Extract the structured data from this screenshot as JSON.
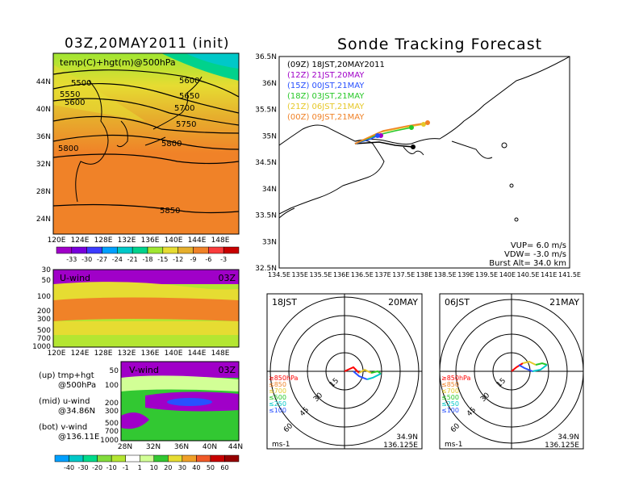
{
  "left_panel": {
    "title": "03Z,20MAY2011 (init)",
    "map_label": "temp(C)+hgt(m)@500hPa",
    "lat_labels": [
      "44N",
      "40N",
      "36N",
      "32N",
      "28N",
      "24N"
    ],
    "lon_labels": [
      "120E",
      "124E",
      "128E",
      "132E",
      "136E",
      "140E",
      "144E",
      "148E"
    ],
    "contour_labels": [
      "5500",
      "5550",
      "5600",
      "5600",
      "5650",
      "5700",
      "5750",
      "5800",
      "5800",
      "5850"
    ],
    "colorbar_labels": [
      "-33",
      "-30",
      "-27",
      "-24",
      "-21",
      "-18",
      "-15",
      "-12",
      "-9",
      "-6",
      "-3"
    ],
    "colorbar_colors": [
      "#a000c8",
      "#7800dc",
      "#3c3cff",
      "#00a0ff",
      "#00c8c8",
      "#00d28c",
      "#a0e632",
      "#e6dc32",
      "#e6af2d",
      "#f08228",
      "#fa3c3c",
      "#c80000"
    ]
  },
  "u_panel": {
    "label": "U-wind",
    "time": "03Z",
    "p_labels": [
      "30",
      "50",
      "100",
      "200",
      "300",
      "500",
      "700",
      "1000"
    ],
    "lon_labels": [
      "120E",
      "124E",
      "128E",
      "132E",
      "136E",
      "140E",
      "144E",
      "148E"
    ]
  },
  "v_panel": {
    "label": "V-wind",
    "time": "03Z",
    "p_labels": [
      "50",
      "100",
      "200",
      "300",
      "500",
      "700",
      "1000"
    ],
    "lat_labels": [
      "28N",
      "32N",
      "36N",
      "40N",
      "44N"
    ]
  },
  "notes": {
    "up": "(up) tmp+hgt",
    "up_sub": "@500hPa",
    "mid": "(mid) u-wind",
    "mid_sub": "@34.86N",
    "bot": "(bot) v-wind",
    "bot_sub": "@136.11E"
  },
  "wind_colorbar": {
    "labels": [
      "-40",
      "-30",
      "-20",
      "-10",
      "-1",
      "1",
      "10",
      "20",
      "30",
      "40",
      "50",
      "60"
    ],
    "colors": [
      "#00a0ff",
      "#00c8c8",
      "#00dc8c",
      "#82dc3c",
      "#b4e632",
      "#ffffff",
      "#d2ff96",
      "#32c832",
      "#e6dc32",
      "#f0a028",
      "#f05a28",
      "#c80000",
      "#960000"
    ]
  },
  "forecast": {
    "title": "Sonde Tracking Forecast",
    "lat_labels": [
      "36.5N",
      "36N",
      "35.5N",
      "35N",
      "34.5N",
      "34N",
      "33.5N",
      "33N",
      "32.5N"
    ],
    "lon_labels": [
      "134.5E",
      "135E",
      "135.5E",
      "136E",
      "136.5E",
      "137E",
      "137.5E",
      "138E",
      "138.5E",
      "139E",
      "139.5E",
      "140E",
      "140.5E",
      "141E",
      "141.5E"
    ],
    "legend": [
      {
        "text": "(09Z)  18JST,20MAY2011",
        "color": "#000000"
      },
      {
        "text": "(12Z)  21JST,20MAY",
        "color": "#a000c8"
      },
      {
        "text": "(15Z)  00JST,21MAY",
        "color": "#2850ff"
      },
      {
        "text": "(18Z)  03JST,21MAY",
        "color": "#28c828"
      },
      {
        "text": "(21Z)  06JST,21MAY",
        "color": "#e6c828"
      },
      {
        "text": "(00Z)  09JST,21MAY",
        "color": "#f08228"
      }
    ],
    "vup": "VUP= 6.0 m/s",
    "vdw": "VDW= -3.0 m/s",
    "burst": "Burst Alt= 34.0 km"
  },
  "hodo1": {
    "time": "18JST",
    "date": "20MAY",
    "loc1": "34.9N",
    "loc2": "136.125E",
    "unit": "ms-1"
  },
  "hodo2": {
    "time": "06JST",
    "date": "21MAY",
    "loc1": "34.9N",
    "loc2": "136.125E",
    "unit": "ms-1"
  },
  "hodo_common": {
    "ring_labels": [
      "15",
      "30",
      "45",
      "60"
    ],
    "levels": [
      {
        "text": "≥850hPa",
        "color": "#ff0000"
      },
      {
        "text": "≤850",
        "color": "#f08228"
      },
      {
        "text": "≤700",
        "color": "#e6c828"
      },
      {
        "text": "≤500",
        "color": "#28c828"
      },
      {
        "text": "≤250",
        "color": "#00c8c8"
      },
      {
        "text": "≤100",
        "color": "#2850ff"
      }
    ]
  }
}
